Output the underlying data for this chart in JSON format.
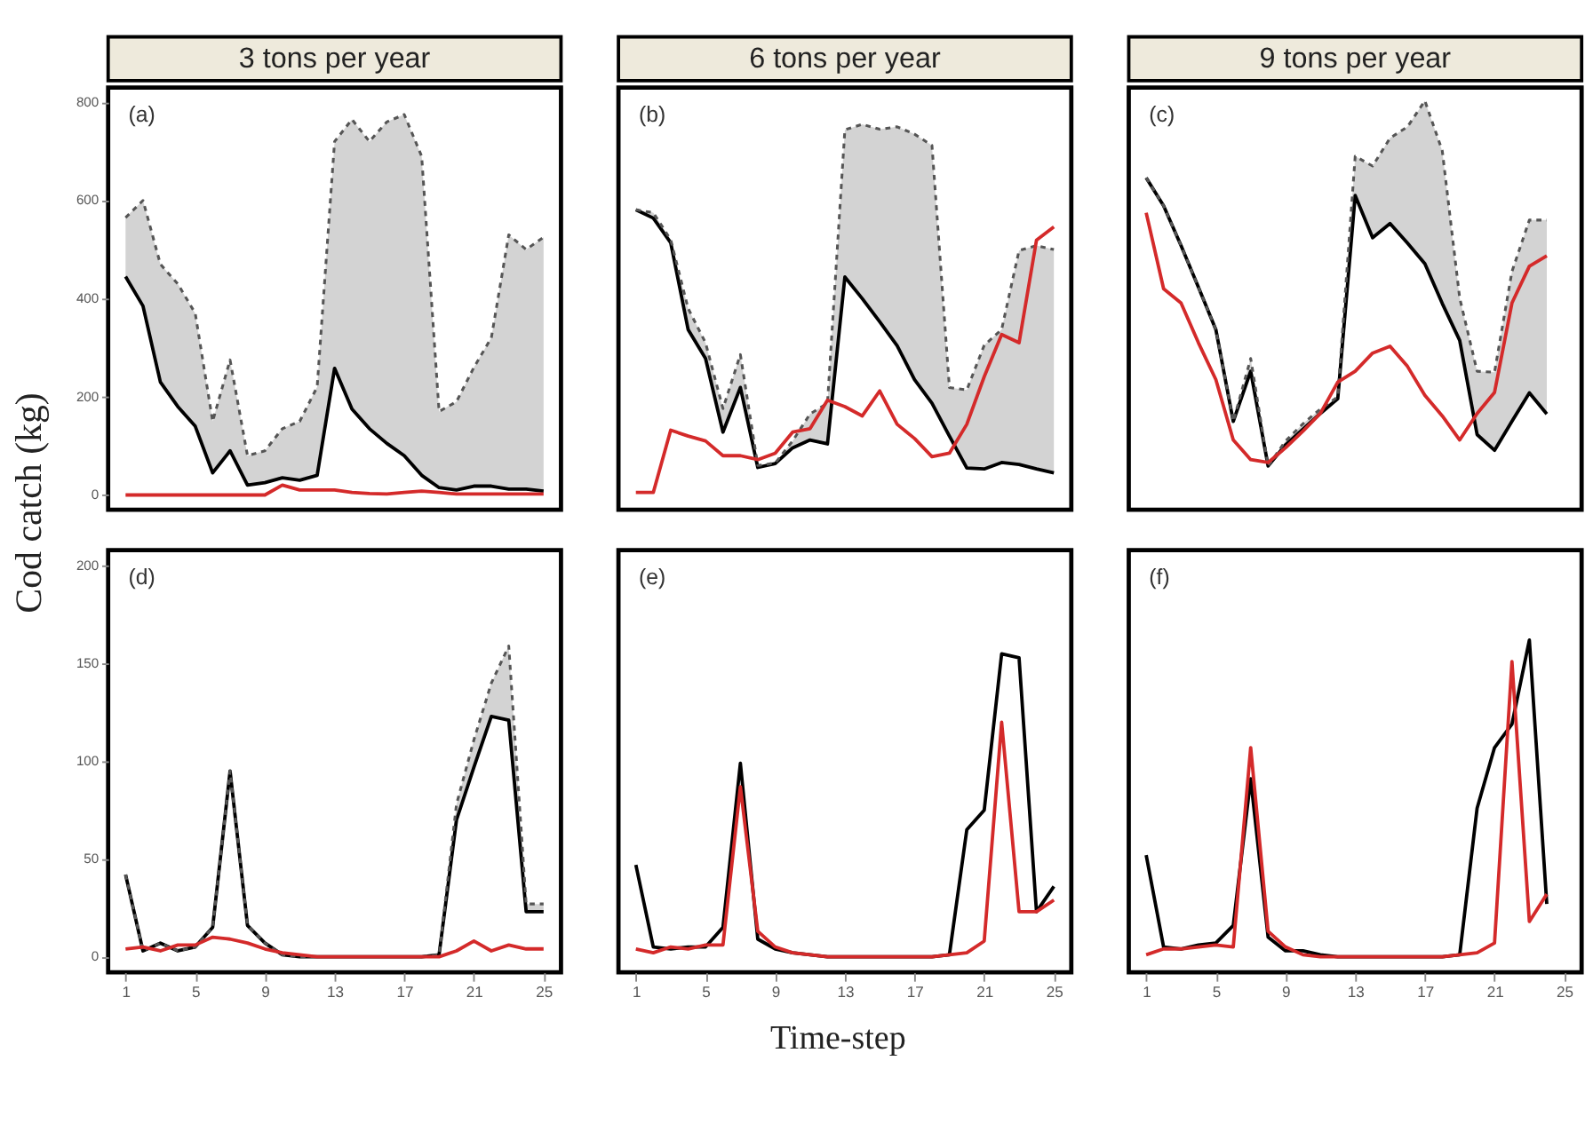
{
  "chart_data": [
    {
      "type": "line",
      "title": "3 tons per year",
      "ylabel": "Cod catch (kg)",
      "annotations": [
        "(a)"
      ],
      "x": [
        1,
        2,
        3,
        4,
        5,
        6,
        7,
        8,
        9,
        10,
        11,
        12,
        13,
        14,
        15,
        16,
        17,
        18,
        19,
        20,
        21,
        22,
        23,
        24,
        25
      ],
      "xlim": [
        0,
        26
      ],
      "ylim": [
        -30,
        830
      ],
      "yticks": [
        0,
        200,
        400,
        600,
        800
      ],
      "tick_labels": "y",
      "series": [
        {
          "color": "#000000",
          "values": [
            445,
            385,
            230,
            180,
            140,
            45,
            90,
            20,
            25,
            35,
            30,
            40,
            258,
            175,
            135,
            105,
            80,
            40,
            15,
            10,
            18,
            18,
            12,
            12,
            8
          ],
          "lower": [
            445,
            385,
            230,
            180,
            140,
            45,
            90,
            20,
            25,
            35,
            30,
            40,
            258,
            175,
            135,
            105,
            80,
            40,
            15,
            10,
            18,
            18,
            12,
            12,
            8
          ],
          "upper": [
            565,
            600,
            470,
            430,
            370,
            150,
            275,
            80,
            90,
            135,
            150,
            220,
            720,
            765,
            720,
            760,
            775,
            690,
            170,
            190,
            260,
            320,
            530,
            500,
            525
          ]
        },
        {
          "color": "#555555",
          "line_style": "dashed",
          "values": [
            565,
            600,
            470,
            430,
            370,
            150,
            275,
            80,
            90,
            135,
            150,
            220,
            720,
            765,
            720,
            760,
            775,
            690,
            170,
            190,
            260,
            320,
            530,
            500,
            525
          ]
        },
        {
          "color": "#d42a2a",
          "values": [
            0,
            0,
            0,
            0,
            0,
            0,
            0,
            0,
            0,
            20,
            10,
            10,
            10,
            5,
            3,
            2,
            5,
            8,
            5,
            2,
            2,
            2,
            2,
            2,
            2
          ]
        }
      ]
    },
    {
      "type": "line",
      "title": "6 tons per year",
      "annotations": [
        "(b)"
      ],
      "x": [
        1,
        2,
        3,
        4,
        5,
        6,
        7,
        8,
        9,
        10,
        11,
        12,
        13,
        14,
        15,
        16,
        17,
        18,
        19,
        20,
        21,
        22,
        23,
        24,
        25
      ],
      "xlim": [
        0,
        26
      ],
      "ylim": [
        -30,
        830
      ],
      "tick_labels": false,
      "series": [
        {
          "color": "#000000",
          "values": [
            581,
            564,
            514,
            337,
            278,
            128,
            219,
            56,
            64,
            96,
            112,
            104,
            444,
            400,
            353,
            304,
            235,
            187,
            120,
            55,
            53,
            66,
            62,
            53,
            45
          ],
          "lower": [
            581,
            564,
            514,
            337,
            278,
            128,
            219,
            56,
            64,
            96,
            112,
            104,
            444,
            400,
            353,
            304,
            235,
            187,
            120,
            55,
            53,
            66,
            62,
            53,
            45
          ],
          "upper": [
            581,
            575,
            520,
            380,
            310,
            176,
            286,
            60,
            65,
            110,
            165,
            187,
            744,
            755,
            745,
            750,
            735,
            712,
            219,
            214,
            305,
            337,
            498,
            508,
            500
          ]
        },
        {
          "color": "#555555",
          "line_style": "dashed",
          "values": [
            581,
            575,
            520,
            380,
            310,
            176,
            286,
            60,
            65,
            110,
            165,
            187,
            744,
            755,
            745,
            750,
            735,
            712,
            219,
            214,
            305,
            337,
            498,
            508,
            500
          ]
        },
        {
          "color": "#d42a2a",
          "values": [
            5,
            5,
            132,
            120,
            110,
            80,
            80,
            72,
            85,
            128,
            135,
            193,
            180,
            161,
            212,
            144,
            115,
            78,
            85,
            144,
            241,
            327,
            310,
            519,
            546
          ]
        }
      ]
    },
    {
      "type": "line",
      "title": "9 tons per year",
      "annotations": [
        "(c)"
      ],
      "x": [
        1,
        2,
        3,
        4,
        5,
        6,
        7,
        8,
        9,
        10,
        11,
        12,
        13,
        14,
        15,
        16,
        17,
        18,
        19,
        20,
        21,
        22,
        23,
        24
      ],
      "xlim": [
        0,
        26
      ],
      "ylim": [
        -30,
        830
      ],
      "tick_labels": false,
      "series": [
        {
          "color": "#000000",
          "values": [
            646,
            589,
            508,
            423,
            337,
            150,
            252,
            59,
            102,
            134,
            166,
            196,
            610,
            524,
            553,
            513,
            471,
            390,
            315,
            123,
            91,
            150,
            208,
            165
          ],
          "lower": [
            646,
            589,
            508,
            423,
            337,
            150,
            252,
            59,
            102,
            134,
            166,
            196,
            610,
            524,
            553,
            513,
            471,
            390,
            315,
            123,
            91,
            150,
            208,
            165
          ],
          "upper": [
            646,
            589,
            508,
            423,
            337,
            150,
            278,
            59,
            110,
            145,
            175,
            200,
            690,
            670,
            727,
            750,
            803,
            701,
            401,
            252,
            250,
            455,
            560,
            560
          ]
        },
        {
          "color": "#555555",
          "line_style": "dashed",
          "values": [
            646,
            589,
            508,
            423,
            337,
            150,
            278,
            59,
            110,
            145,
            175,
            200,
            690,
            670,
            727,
            750,
            803,
            701,
            401,
            252,
            250,
            455,
            560,
            560
          ]
        },
        {
          "color": "#d42a2a",
          "values": [
            575,
            420,
            391,
            310,
            235,
            112,
            72,
            66,
            96,
            130,
            166,
            230,
            252,
            289,
            303,
            262,
            203,
            161,
            112,
            166,
            209,
            391,
            466,
            487
          ]
        }
      ]
    },
    {
      "type": "line",
      "annotations": [
        "(d)"
      ],
      "x": [
        1,
        2,
        3,
        4,
        5,
        6,
        7,
        8,
        9,
        10,
        11,
        12,
        13,
        14,
        15,
        16,
        17,
        18,
        19,
        20,
        21,
        22,
        23,
        24,
        25
      ],
      "xlim": [
        0,
        26
      ],
      "xticks": [
        1,
        5,
        9,
        13,
        17,
        21,
        25
      ],
      "ylim": [
        -8,
        208
      ],
      "yticks": [
        0,
        50,
        100,
        150,
        200
      ],
      "series": [
        {
          "color": "#000000",
          "values": [
            42,
            3,
            7,
            3,
            5,
            15,
            95,
            16,
            7,
            1,
            0,
            0,
            0,
            0,
            0,
            0,
            0,
            0,
            1,
            70,
            97,
            123,
            121,
            23,
            23
          ],
          "lower": [
            42,
            3,
            7,
            3,
            5,
            15,
            95,
            16,
            7,
            1,
            0,
            0,
            0,
            0,
            0,
            0,
            0,
            0,
            1,
            70,
            97,
            123,
            121,
            23,
            23
          ],
          "upper": [
            42,
            3,
            7,
            3,
            5,
            15,
            95,
            16,
            7,
            1,
            0,
            0,
            0,
            0,
            0,
            0,
            0,
            0,
            1,
            78,
            111,
            140,
            159,
            27,
            27
          ]
        },
        {
          "color": "#555555",
          "line_style": "dashed",
          "values": [
            42,
            3,
            7,
            3,
            5,
            15,
            95,
            16,
            7,
            1,
            0,
            0,
            0,
            0,
            0,
            0,
            0,
            0,
            1,
            78,
            111,
            140,
            159,
            27,
            27
          ]
        },
        {
          "color": "#d42a2a",
          "values": [
            4,
            5,
            3,
            6,
            6,
            10,
            9,
            7,
            4,
            2,
            1,
            0,
            0,
            0,
            0,
            0,
            0,
            0,
            0,
            3,
            8,
            3,
            6,
            4,
            4
          ]
        }
      ]
    },
    {
      "type": "line",
      "xlabel": "Time-step",
      "annotations": [
        "(e)"
      ],
      "x": [
        1,
        2,
        3,
        4,
        5,
        6,
        7,
        8,
        9,
        10,
        11,
        12,
        13,
        14,
        15,
        16,
        17,
        18,
        19,
        20,
        21,
        22,
        23,
        24,
        25
      ],
      "xlim": [
        0,
        26
      ],
      "xticks": [
        1,
        5,
        9,
        13,
        17,
        21,
        25
      ],
      "ylim": [
        -8,
        208
      ],
      "tick_labels": "x",
      "series": [
        {
          "color": "#000000",
          "values": [
            47,
            5,
            4,
            5,
            5,
            15,
            99,
            9,
            4,
            2,
            1,
            0,
            0,
            0,
            0,
            0,
            0,
            0,
            1,
            65,
            75,
            155,
            153,
            23,
            36
          ]
        },
        {
          "color": "#d42a2a",
          "values": [
            4,
            2,
            5,
            4,
            6,
            6,
            87,
            13,
            5,
            2,
            1,
            0,
            0,
            0,
            0,
            0,
            0,
            0,
            1,
            2,
            8,
            120,
            23,
            23,
            29
          ]
        }
      ]
    },
    {
      "type": "line",
      "annotations": [
        "(f)"
      ],
      "x": [
        1,
        2,
        3,
        4,
        5,
        6,
        7,
        8,
        9,
        10,
        11,
        12,
        13,
        14,
        15,
        16,
        17,
        18,
        19,
        20,
        21,
        22,
        23,
        24
      ],
      "xlim": [
        0,
        26
      ],
      "xticks": [
        1,
        5,
        9,
        13,
        17,
        21,
        25
      ],
      "ylim": [
        -8,
        208
      ],
      "tick_labels": "x",
      "series": [
        {
          "color": "#000000",
          "values": [
            52,
            5,
            4,
            6,
            7,
            16,
            91,
            10,
            3,
            3,
            1,
            0,
            0,
            0,
            0,
            0,
            0,
            0,
            1,
            76,
            107,
            119,
            162,
            27
          ]
        },
        {
          "color": "#d42a2a",
          "values": [
            1,
            4,
            4,
            5,
            6,
            5,
            107,
            13,
            5,
            1,
            0,
            0,
            0,
            0,
            0,
            0,
            0,
            0,
            1,
            2,
            7,
            151,
            18,
            32
          ]
        }
      ]
    }
  ]
}
